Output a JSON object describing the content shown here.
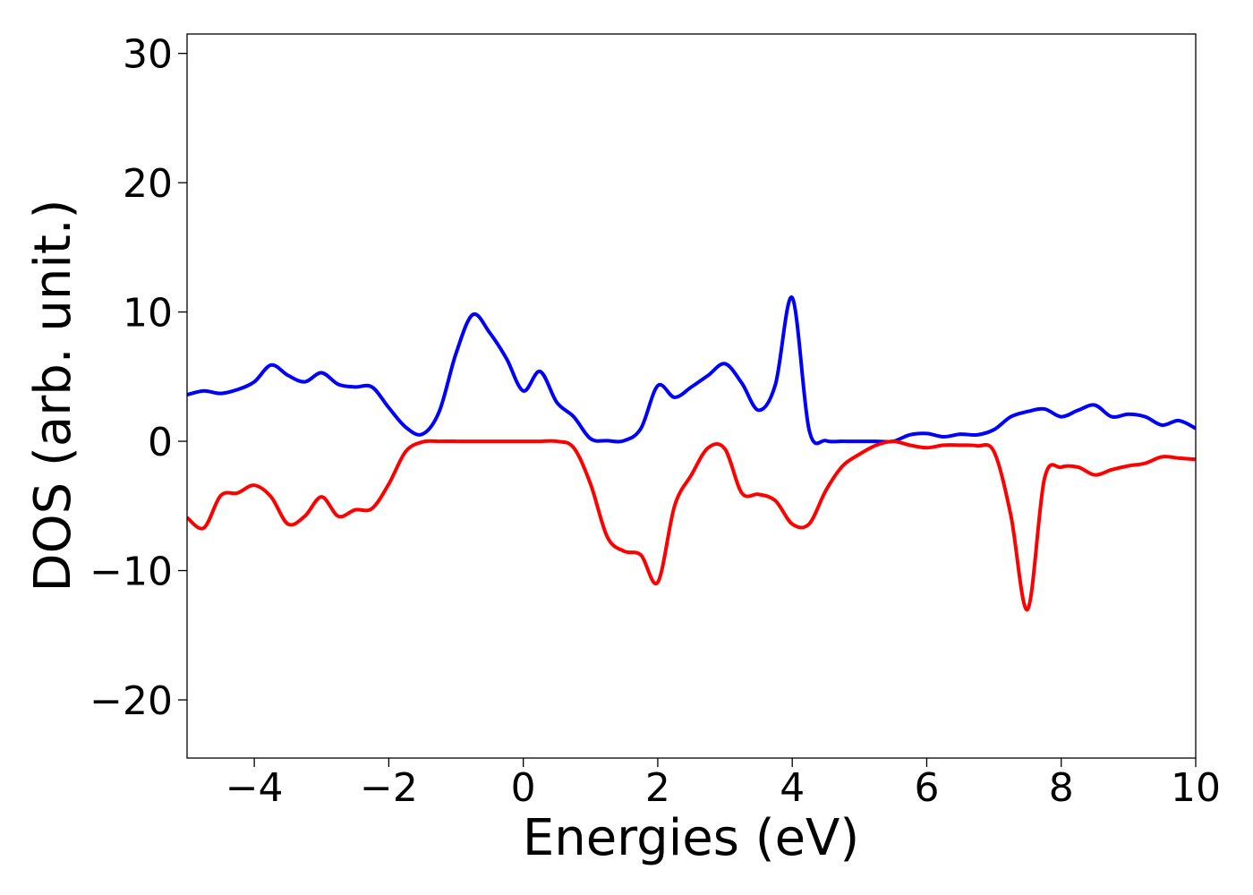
{
  "chart_data": {
    "type": "line",
    "xlabel": "Energies (eV)",
    "ylabel": "DOS (arb. unit.)",
    "x": [
      -5,
      -4.75,
      -4.5,
      -4.25,
      -4,
      -3.75,
      -3.5,
      -3.25,
      -3,
      -2.75,
      -2.5,
      -2.25,
      -2,
      -1.75,
      -1.5,
      -1.25,
      -1,
      -0.75,
      -0.5,
      -0.25,
      0,
      0.25,
      0.5,
      0.75,
      1,
      1.25,
      1.5,
      1.75,
      2,
      2.25,
      2.5,
      2.75,
      3,
      3.25,
      3.5,
      3.75,
      4,
      4.25,
      4.5,
      4.75,
      5,
      5.25,
      5.5,
      5.75,
      6,
      6.25,
      6.5,
      6.75,
      7,
      7.25,
      7.5,
      7.75,
      8,
      8.25,
      8.5,
      8.75,
      9,
      9.25,
      9.5,
      9.75,
      10
    ],
    "series": [
      {
        "color": "#0000ff",
        "values": [
          3.6,
          3.9,
          3.7,
          4.0,
          4.6,
          5.9,
          5.1,
          4.6,
          5.3,
          4.4,
          4.2,
          4.2,
          2.6,
          1.1,
          0.55,
          2.3,
          6.8,
          9.8,
          8.4,
          6.4,
          3.9,
          5.4,
          3.0,
          1.9,
          0.2,
          0.05,
          0.05,
          1.0,
          4.3,
          3.4,
          4.2,
          5.1,
          6.0,
          4.5,
          2.4,
          4.4,
          11.1,
          0.9,
          0.05,
          0,
          0,
          0,
          0,
          0.5,
          0.6,
          0.35,
          0.55,
          0.5,
          0.9,
          1.9,
          2.3,
          2.5,
          1.9,
          2.4,
          2.8,
          1.9,
          2.1,
          1.9,
          1.25,
          1.6,
          1.0
        ]
      },
      {
        "color": "#ff0000",
        "values": [
          -5.9,
          -6.7,
          -4.2,
          -4.0,
          -3.4,
          -4.3,
          -6.4,
          -5.8,
          -4.3,
          -5.8,
          -5.3,
          -5.2,
          -3.3,
          -0.8,
          -0.05,
          0,
          0,
          0,
          0,
          0,
          0,
          0,
          0,
          -0.5,
          -3.3,
          -7.4,
          -8.5,
          -8.8,
          -10.9,
          -5.0,
          -2.6,
          -0.5,
          -0.6,
          -4.0,
          -4.1,
          -4.6,
          -6.4,
          -6.4,
          -3.8,
          -1.9,
          -1.0,
          -0.3,
          0,
          -0.3,
          -0.5,
          -0.3,
          -0.3,
          -0.35,
          -0.8,
          -5.7,
          -13.0,
          -2.9,
          -2.0,
          -2.0,
          -2.6,
          -2.2,
          -1.9,
          -1.7,
          -1.2,
          -1.3,
          -1.4
        ]
      }
    ],
    "xlim": [
      -5,
      10
    ],
    "ylim": [
      -24.5,
      31.5
    ],
    "xticks": [
      {
        "value": -4,
        "label": "−4"
      },
      {
        "value": -2,
        "label": "−2"
      },
      0,
      2,
      4,
      6,
      8,
      10
    ],
    "yticks": [
      {
        "value": -20,
        "label": "−20"
      },
      {
        "value": -10,
        "label": "−10"
      },
      0,
      10,
      20,
      30
    ],
    "grid": false
  }
}
